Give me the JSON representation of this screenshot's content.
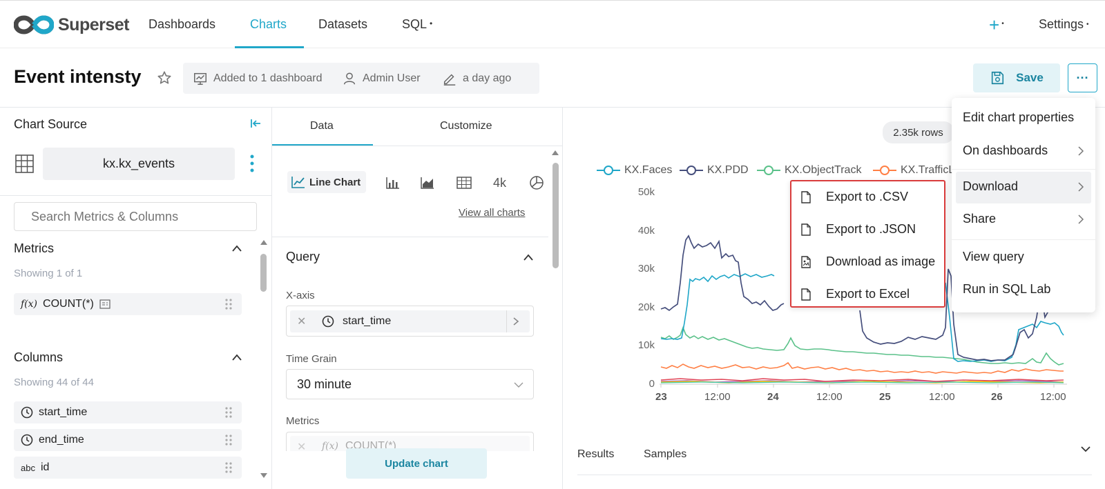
{
  "nav": {
    "brand": "Superset",
    "items": [
      "Dashboards",
      "Charts",
      "Datasets",
      "SQL"
    ],
    "settings": "Settings"
  },
  "header": {
    "title": "Event intensty",
    "added_to": "Added to 1 dashboard",
    "owner": "Admin User",
    "modified": "a day ago",
    "save_label": "Save",
    "more_label": "···"
  },
  "left": {
    "chart_source": "Chart Source",
    "dataset": "kx.kx_events",
    "search_placeholder": "Search Metrics & Columns",
    "metrics_title": "Metrics",
    "metrics_showing": "Showing 1 of 1",
    "metric_fx": "f(x)",
    "metric_name": "COUNT(*)",
    "columns_title": "Columns",
    "columns_showing": "Showing 44 of 44",
    "columns": [
      {
        "type": "clock",
        "name": "start_time"
      },
      {
        "type": "clock",
        "name": "end_time"
      },
      {
        "type": "abc",
        "name": "id"
      }
    ]
  },
  "middle": {
    "tabs": [
      "Data",
      "Customize"
    ],
    "active_chart": "Line Chart",
    "num_label": "4k",
    "view_all": "View all charts",
    "query_title": "Query",
    "xaxis_label": "X-axis",
    "xaxis_value": "start_time",
    "timegrain_label": "Time Grain",
    "timegrain_value": "30 minute",
    "metrics_label": "Metrics",
    "metrics_value_fx": "f(x)",
    "metrics_value": "COUNT(*)",
    "update_button": "Update chart"
  },
  "chart": {
    "rows_badge": "2.35k rows",
    "results_tab": "Results",
    "samples_tab": "Samples"
  },
  "chart_data": {
    "type": "line",
    "series": [
      {
        "name": "KX.Faces",
        "color": "#1ea6c8"
      },
      {
        "name": "KX.PDD",
        "color": "#454e7c"
      },
      {
        "name": "KX.ObjectTrack",
        "color": "#5ac189"
      },
      {
        "name": "KX.TrafficL",
        "color": "#ff7f44"
      }
    ],
    "yticks": [
      "50k",
      "40k",
      "30k",
      "20k",
      "10k",
      "0"
    ],
    "xticks": [
      "23",
      "12:00",
      "24",
      "12:00",
      "25",
      "12:00",
      "26",
      "12:00"
    ],
    "ylim": [
      0,
      50000
    ]
  },
  "more_menu": {
    "items": [
      "Edit chart properties",
      "On dashboards",
      "Download",
      "Share",
      "View query",
      "Run in SQL Lab"
    ]
  },
  "download_menu": {
    "items": [
      "Export to .CSV",
      "Export to .JSON",
      "Download as image",
      "Export to Excel"
    ]
  }
}
